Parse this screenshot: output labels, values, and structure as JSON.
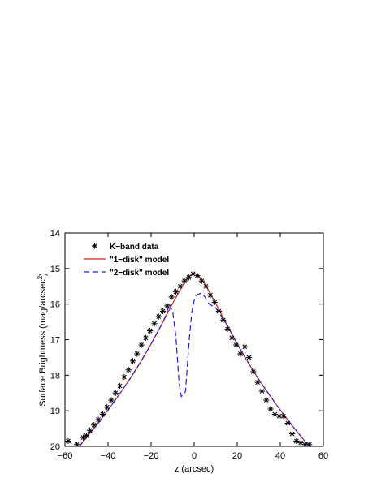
{
  "chart_data": {
    "type": "line",
    "xlabel": "z (arcsec)",
    "ylabel": "Surface Brightness (mag/arcsec",
    "ylabel_sup": "2",
    "ylabel_close": ")",
    "xlim": [
      -60,
      60
    ],
    "ylim": [
      20,
      14
    ],
    "y_inverted": true,
    "xticks": [
      -60,
      -40,
      -20,
      0,
      20,
      40,
      60
    ],
    "xtick_labels": [
      "−60",
      "−40",
      "−20",
      "0",
      "20",
      "40",
      "60"
    ],
    "yticks": [
      14,
      15,
      16,
      17,
      18,
      19,
      20
    ],
    "ytick_labels": [
      "14",
      "15",
      "16",
      "17",
      "18",
      "19",
      "20"
    ],
    "grid": false,
    "legend_position": "top-left",
    "series": [
      {
        "name": "K−band data",
        "style": "markers",
        "marker": "asterisk",
        "color": "#000000",
        "x": [
          -58.5,
          -54.5,
          -51.5,
          -50,
          -48.5,
          -46.5,
          -44.5,
          -42.5,
          -40.5,
          -38.5,
          -36.5,
          -34.5,
          -32.5,
          -30.5,
          -28.5,
          -26.5,
          -24.5,
          -22.5,
          -20.5,
          -18.5,
          -16.5,
          -14.5,
          -12.5,
          -10.5,
          -8.5,
          -6.5,
          -4.5,
          -2.5,
          -0.5,
          1.5,
          3.5,
          5.5,
          7.5,
          9.5,
          11.5,
          13.5,
          15.5,
          17.5,
          19.5,
          21.5,
          23.5,
          25.5,
          27.5,
          29.5,
          31.5,
          33.5,
          35.5,
          37.5,
          39.5,
          41.5,
          43.5,
          45.5,
          47.5,
          49.5,
          51.5,
          53.5
        ],
        "y": [
          19.85,
          19.95,
          19.75,
          19.7,
          19.55,
          19.4,
          19.25,
          19.1,
          18.9,
          18.7,
          18.5,
          18.3,
          18.05,
          17.85,
          17.6,
          17.4,
          17.15,
          16.95,
          16.75,
          16.55,
          16.35,
          16.2,
          16.05,
          15.8,
          15.65,
          15.5,
          15.35,
          15.25,
          15.15,
          15.2,
          15.35,
          15.5,
          15.75,
          15.95,
          16.2,
          16.45,
          16.7,
          16.95,
          17.15,
          17.4,
          17.2,
          17.5,
          17.9,
          18.2,
          18.45,
          18.7,
          18.95,
          19.1,
          19.15,
          19.15,
          19.35,
          19.65,
          19.85,
          19.9,
          19.95,
          19.95
        ]
      },
      {
        "name": "\"1−disk\" model",
        "style": "solid",
        "color": "#e02020",
        "x": [
          -56,
          -50,
          -45,
          -40,
          -35,
          -30,
          -25,
          -20,
          -15,
          -10,
          -5,
          -2,
          0,
          2,
          5,
          10,
          15,
          20,
          25,
          30,
          35,
          40,
          45,
          50,
          56
        ],
        "y": [
          20.2,
          19.75,
          19.38,
          18.98,
          18.56,
          18.12,
          17.64,
          17.12,
          16.56,
          15.98,
          15.44,
          15.2,
          15.13,
          15.2,
          15.44,
          15.98,
          16.56,
          17.12,
          17.64,
          18.12,
          18.56,
          18.98,
          19.38,
          19.75,
          20.2
        ]
      },
      {
        "name": "\"2−disk\" model",
        "style": "dashed",
        "color": "#2020e0",
        "x": [
          -56,
          -50,
          -45,
          -40,
          -35,
          -30,
          -25,
          -20,
          -15,
          -13,
          -11.5,
          -10,
          -8.5,
          -7,
          -6,
          -5,
          -4,
          -3,
          -2,
          -1,
          0,
          1,
          2,
          3,
          4,
          5,
          6,
          7,
          10,
          15,
          20,
          25,
          30,
          35,
          40,
          45,
          50,
          56
        ],
        "y": [
          20.2,
          19.75,
          19.38,
          18.98,
          18.56,
          18.12,
          17.64,
          17.12,
          16.56,
          16.3,
          16.0,
          16.2,
          16.9,
          18.2,
          18.6,
          18.55,
          18.45,
          17.6,
          16.8,
          16.2,
          15.9,
          15.75,
          15.72,
          15.7,
          15.73,
          15.8,
          15.9,
          16.0,
          16.1,
          16.56,
          17.12,
          17.64,
          18.12,
          18.56,
          18.98,
          19.38,
          19.75,
          20.2
        ]
      }
    ]
  }
}
